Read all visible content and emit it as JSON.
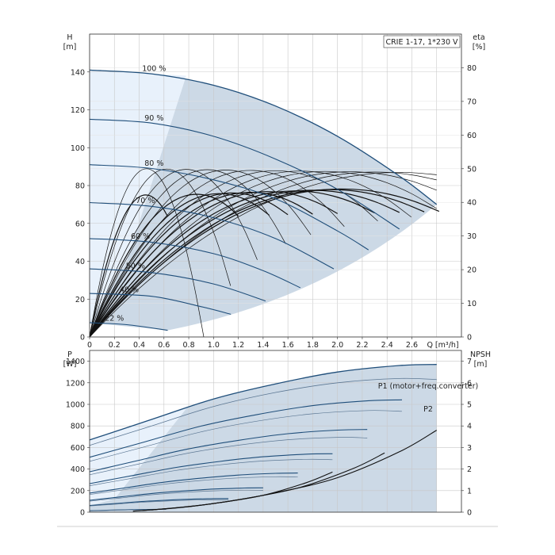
{
  "chart_data": [
    {
      "type": "line",
      "title": "CRIE 1-17, 1*230 V",
      "xlabel": "Q [m³/h]",
      "ylabel": "H\n[m]",
      "y2label": "eta\n[%]",
      "xlim": [
        0,
        3.0
      ],
      "ylim": [
        0,
        160
      ],
      "y2lim": [
        0,
        90
      ],
      "x_ticks": [
        "0",
        "0.2",
        "0.4",
        "0.6",
        "0.8",
        "1.0",
        "1.2",
        "1.4",
        "1.6",
        "1.8",
        "2.0",
        "2.2",
        "2.4",
        "2.6"
      ],
      "y_ticks": [
        "0",
        "20",
        "40",
        "60",
        "80",
        "100",
        "120",
        "140"
      ],
      "y2_ticks": [
        "0",
        "10",
        "20",
        "30",
        "40",
        "50",
        "60",
        "70",
        "80"
      ],
      "grid": true,
      "speed_curves": [
        {
          "name": "100 %",
          "x": [
            0,
            0.5,
            1.0,
            1.5,
            2.0,
            2.5,
            2.8
          ],
          "y": [
            141,
            139,
            133,
            122,
            106,
            85,
            70
          ]
        },
        {
          "name": "90 %",
          "x": [
            0,
            0.5,
            1.0,
            1.5,
            2.0,
            2.5
          ],
          "y": [
            115,
            113,
            106,
            94,
            78,
            57
          ]
        },
        {
          "name": "80 %",
          "x": [
            0,
            0.5,
            1.0,
            1.5,
            2.0,
            2.25
          ],
          "y": [
            91,
            89,
            83,
            73,
            56,
            46
          ]
        },
        {
          "name": "70 %",
          "x": [
            0,
            0.5,
            1.0,
            1.5,
            1.97
          ],
          "y": [
            71,
            69,
            63,
            52,
            36
          ]
        },
        {
          "name": "60 %",
          "x": [
            0,
            0.5,
            1.0,
            1.4,
            1.7
          ],
          "y": [
            52,
            50,
            44,
            35,
            26
          ]
        },
        {
          "name": "50 %",
          "x": [
            0,
            0.5,
            1.0,
            1.42
          ],
          "y": [
            36,
            34,
            28,
            19
          ]
        },
        {
          "name": "40 %",
          "x": [
            0,
            0.5,
            0.9,
            1.14
          ],
          "y": [
            23,
            21.5,
            16,
            12
          ]
        },
        {
          "name": "22 %",
          "x": [
            0,
            0.3,
            0.63
          ],
          "y": [
            7.5,
            6.5,
            3.5
          ]
        }
      ],
      "efficiency_curves": [
        {
          "x": [
            0,
            0.3,
            0.46,
            0.6,
            0.63
          ],
          "eta": [
            0,
            44,
            50,
            47,
            44
          ]
        },
        {
          "x": [
            0,
            1.0,
            2.0,
            2.8
          ],
          "eta": [
            0,
            40,
            45,
            39
          ]
        }
      ]
    },
    {
      "type": "line",
      "xlabel": "",
      "ylabel": "P\n[W]",
      "y2label": "NPSH\n[m]",
      "xlim": [
        0,
        3.0
      ],
      "ylim": [
        0,
        1500
      ],
      "y2lim": [
        0,
        7.5
      ],
      "y_ticks": [
        "0",
        "200",
        "400",
        "600",
        "800",
        "1000",
        "1200",
        "1400"
      ],
      "y2_ticks": [
        "0",
        "1",
        "2",
        "3",
        "4",
        "5",
        "6",
        "7"
      ],
      "grid": true,
      "series": [
        {
          "name": "P1 (motor+freq.converter)",
          "x": [
            0,
            0.5,
            1.0,
            1.5,
            2.0,
            2.5,
            2.8
          ],
          "y": [
            670,
            860,
            1050,
            1190,
            1300,
            1360,
            1370
          ]
        },
        {
          "name": "P2",
          "x": [
            0,
            0.5,
            1.0,
            1.5,
            2.0,
            2.5,
            2.8
          ],
          "y": [
            620,
            800,
            980,
            1110,
            1200,
            1240,
            1230
          ]
        }
      ],
      "npsh": {
        "x": [
          0.5,
          1.0,
          1.5,
          2.0,
          2.5,
          2.8
        ],
        "y": [
          0.1,
          0.4,
          0.9,
          1.6,
          2.8,
          3.8
        ]
      }
    }
  ],
  "header": {
    "box_title": "CRIE 1-17, 1*230 V"
  },
  "top": {
    "ylabel_sym": "H",
    "ylabel_unit": "[m]",
    "y2label_sym": "eta",
    "y2label_unit": "[%]",
    "xlabel": "Q [m³/h]"
  },
  "bottom": {
    "ylabel_sym": "P",
    "ylabel_unit": "[W]",
    "y2label_sym": "NPSH",
    "y2label_unit": "[m]",
    "p1_label": "P1 (motor+freq.converter)",
    "p2_label": "P2"
  },
  "colors": {
    "region": "#ccd9e6",
    "region_light": "#e8f1fb",
    "curve_blue": "#1f4e7a",
    "curve_black": "#111111",
    "grid": "#c8c8c8"
  }
}
